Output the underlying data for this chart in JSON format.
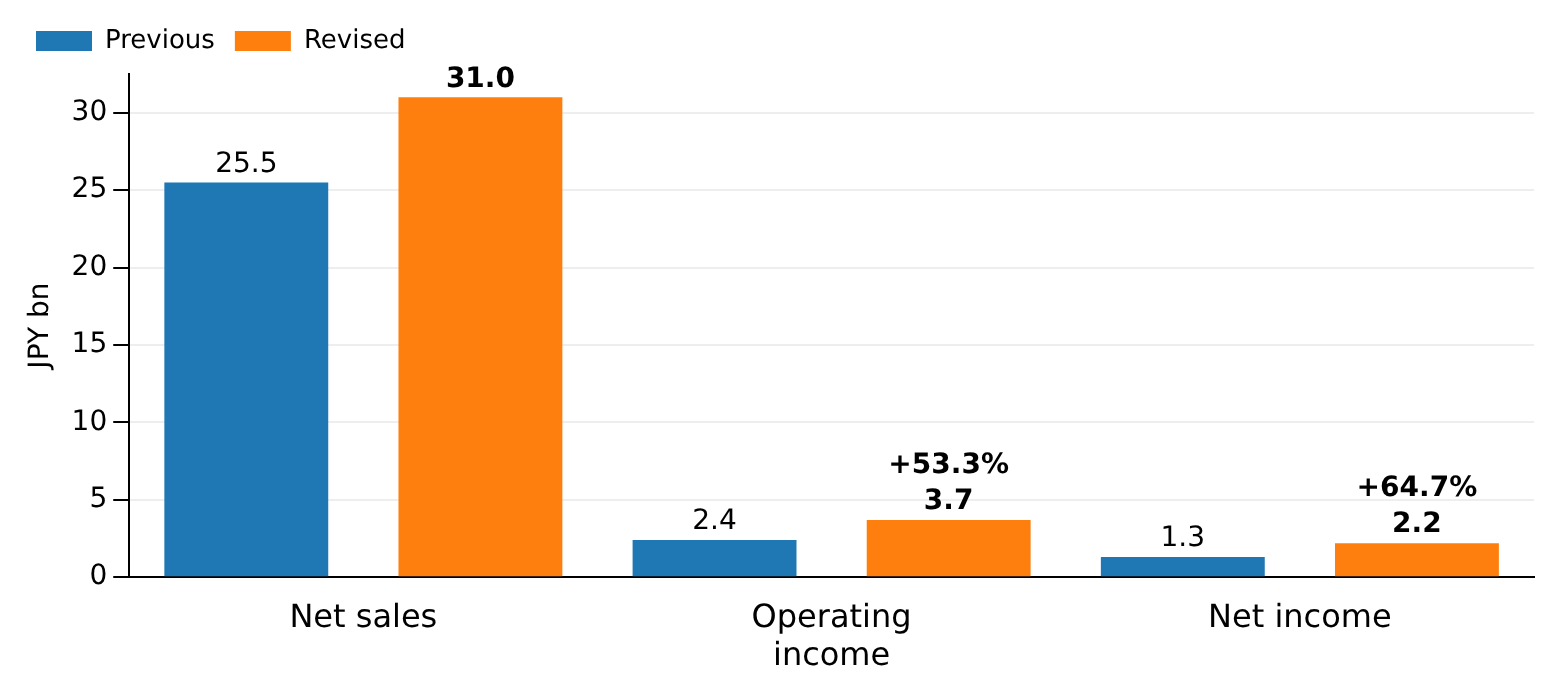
{
  "chart_data": {
    "type": "bar",
    "ylabel": "JPY bn",
    "categories": [
      "Net sales",
      "Operating income",
      "Net income"
    ],
    "series": [
      {
        "name": "Previous",
        "color": "#1f77b4",
        "values": [
          25.5,
          2.4,
          1.3
        ],
        "value_labels": [
          "25.5",
          "2.4",
          "1.3"
        ]
      },
      {
        "name": "Revised",
        "color": "#ff7f0e",
        "values": [
          31.0,
          3.7,
          2.2
        ],
        "value_labels": [
          "31.0",
          "3.7",
          "2.2"
        ]
      }
    ],
    "annotations": [
      "+53.3%",
      "+64.7%"
    ],
    "ylim": [
      0,
      32.5
    ],
    "yticks": [
      0,
      5,
      10,
      15,
      20,
      25,
      30
    ],
    "grid": "y",
    "legend": "top left"
  }
}
